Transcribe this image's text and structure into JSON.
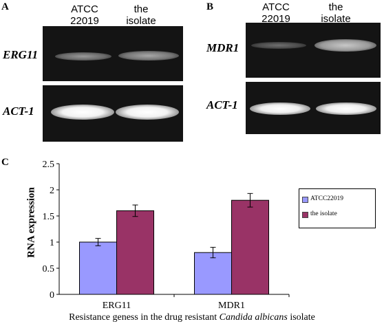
{
  "panels": {
    "A": {
      "letter": "A",
      "lanes": [
        "ATCC\n22019",
        "the\nisolate"
      ],
      "genes": [
        "ERG11",
        "ACT-1"
      ]
    },
    "B": {
      "letter": "B",
      "lanes": [
        "ATCC\n22019",
        "the\nisolate"
      ],
      "genes": [
        "MDR1",
        "ACT-1"
      ]
    },
    "C": {
      "letter": "C"
    }
  },
  "chart_data": {
    "type": "bar",
    "categories": [
      "ERG11",
      "MDR1"
    ],
    "series": [
      {
        "name": "ATCC22019",
        "values": [
          1.0,
          0.8
        ],
        "errors": [
          0.07,
          0.1
        ],
        "color": "#9999ff"
      },
      {
        "name": "the isolate",
        "values": [
          1.6,
          1.8
        ],
        "errors": [
          0.11,
          0.13
        ],
        "color": "#993366"
      }
    ],
    "ylabel": "RNA expression",
    "xlabel_parts": [
      "Resistance geness in the drug resistant ",
      "Candida albicans",
      " isolate"
    ],
    "ylim": [
      0,
      2.5
    ],
    "yticks": [
      "0",
      "0.5",
      "1",
      "1.5",
      "2",
      "2.5"
    ],
    "legend_position": "right"
  }
}
